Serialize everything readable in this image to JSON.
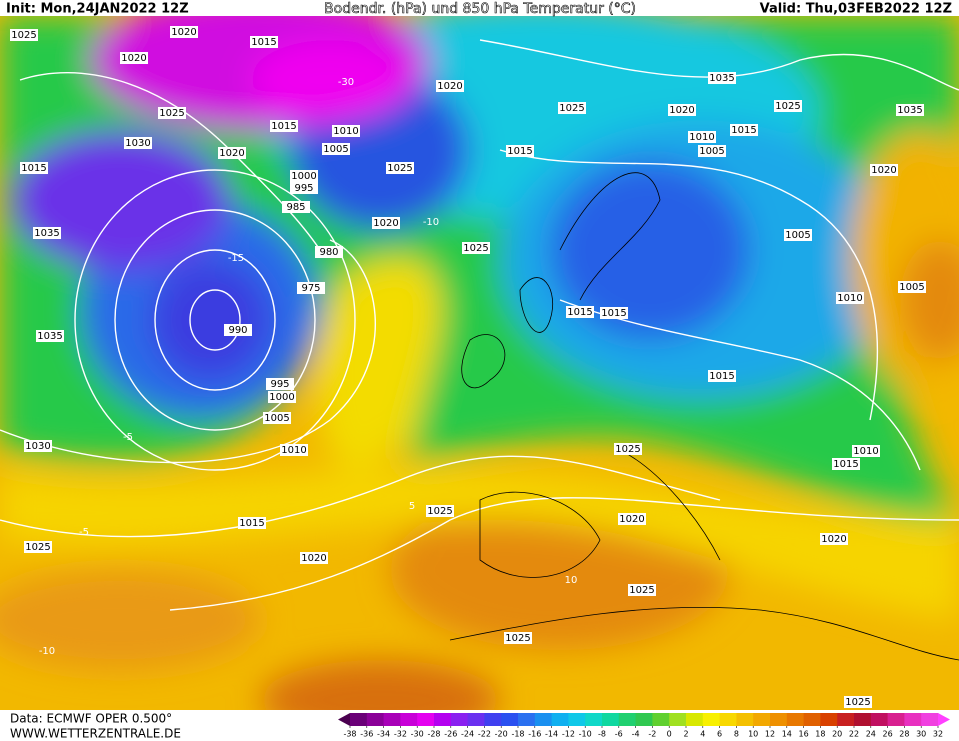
{
  "header": {
    "init": "Init: Mon,24JAN2022 12Z",
    "title": "Bodendr. (hPa) und 850 hPa Temperatur (°C)",
    "valid": "Valid: Thu,03FEB2022 12Z"
  },
  "footer": {
    "source": "Data: ECMWF OPER 0.500°",
    "website": "WWW.WETTERZENTRALE.DE"
  },
  "isobar_labels": [
    "1025",
    "1020",
    "1015",
    "1020",
    "1025",
    "1015",
    "1030",
    "1020",
    "1010",
    "1005",
    "1015",
    "1000",
    "995",
    "985",
    "980",
    "975",
    "990",
    "995",
    "1000",
    "1005",
    "1010",
    "1035",
    "1035",
    "1030",
    "1015",
    "1025",
    "1020",
    "1020",
    "1025",
    "1020",
    "1025",
    "1015",
    "1025",
    "1015",
    "1015",
    "1020",
    "1010",
    "1005",
    "1015",
    "1025",
    "1035",
    "1020",
    "1005",
    "1010",
    "1005",
    "1015",
    "1010",
    "1015",
    "1025",
    "1025",
    "1020",
    "1020",
    "1025",
    "1025",
    "1025",
    "1035"
  ],
  "isotherm_labels": [
    "-30",
    "-15",
    "-10",
    "-5",
    "5",
    "10",
    "-10",
    "-5"
  ],
  "colorbar": {
    "ticks": [
      -38,
      -36,
      -34,
      -32,
      -30,
      -28,
      -26,
      -24,
      -22,
      -20,
      -18,
      -16,
      -14,
      -12,
      -10,
      -8,
      -6,
      -4,
      -2,
      0,
      2,
      4,
      6,
      8,
      10,
      12,
      14,
      16,
      18,
      20,
      22,
      24,
      26,
      28,
      30,
      32
    ],
    "colors": [
      "#4a0050",
      "#6a0078",
      "#8a0098",
      "#a800b8",
      "#c800d8",
      "#e400f0",
      "#b400f0",
      "#8a20f0",
      "#6a30f0",
      "#4040f0",
      "#2a50f0",
      "#2a70f0",
      "#1a90f0",
      "#10b0f0",
      "#10c8e8",
      "#10d8c8",
      "#10d8a0",
      "#20d070",
      "#30c850",
      "#60d030",
      "#a0e020",
      "#d8e800",
      "#f8f000",
      "#f8d800",
      "#f4c000",
      "#f2a800",
      "#ee9000",
      "#e87800",
      "#e06000",
      "#d84000",
      "#c82020",
      "#b01030",
      "#c01060",
      "#d82090",
      "#e830c0",
      "#f040e0",
      "#ff40ff"
    ]
  }
}
